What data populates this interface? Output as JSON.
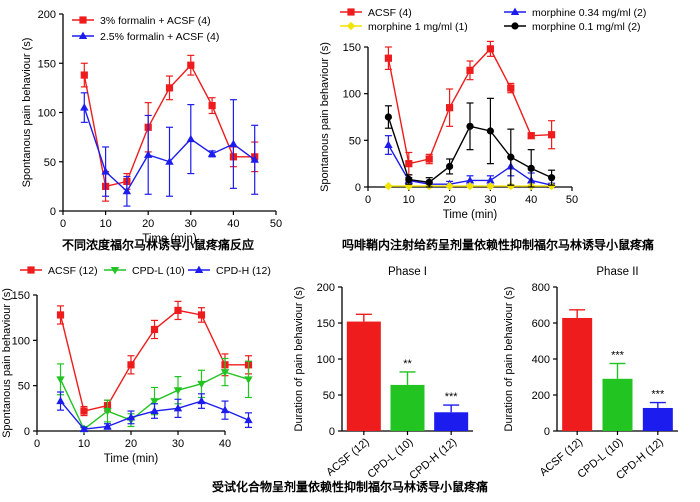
{
  "captions": {
    "panel_a": "不同浓度福尔马林诱导小鼠疼痛反应",
    "panel_b": "吗啡鞘内注射给药呈剂量依赖性抑制福尔马林诱导小鼠疼痛",
    "bottom": "受试化合物呈剂量依赖性抑制福尔马林诱导小鼠疼痛"
  },
  "colors": {
    "red": "#ee1c1c",
    "blue": "#1c1cee",
    "green": "#22c422",
    "black": "#000000",
    "yellow": "#f2e400"
  },
  "chart_data": [
    {
      "id": "a",
      "type": "line",
      "xlabel": "Time (min)",
      "ylabel": "Spontanous pain behaviour (s)",
      "xlim": [
        0,
        50
      ],
      "ylim": [
        0,
        200
      ],
      "xticks": [
        0,
        10,
        20,
        30,
        40,
        50
      ],
      "yticks": [
        0,
        50,
        100,
        150,
        200
      ],
      "legend_position": "top-left",
      "x": [
        5,
        10,
        15,
        20,
        25,
        30,
        35,
        40,
        45
      ],
      "series": [
        {
          "name": "3% formalin + ACSF (4)",
          "color": "#ee1c1c",
          "marker": "square",
          "values": [
            138,
            25,
            30,
            85,
            125,
            148,
            107,
            55,
            55
          ],
          "errors": [
            12,
            15,
            8,
            25,
            12,
            10,
            8,
            10,
            15
          ]
        },
        {
          "name": "2.5% formalin + ACSF (4)",
          "color": "#1c1cee",
          "marker": "triangle",
          "values": [
            105,
            40,
            20,
            57,
            50,
            73,
            58,
            68,
            52
          ],
          "errors": [
            15,
            25,
            15,
            40,
            35,
            35,
            3,
            45,
            35
          ]
        }
      ]
    },
    {
      "id": "b",
      "type": "line",
      "xlabel": "Time (min)",
      "ylabel": "Spontanous pain behaviour (s)",
      "xlim": [
        0,
        50
      ],
      "ylim": [
        0,
        150
      ],
      "xticks": [
        0,
        10,
        20,
        30,
        40,
        50
      ],
      "yticks": [
        0,
        50,
        100,
        150
      ],
      "legend_position": "top",
      "x": [
        5,
        10,
        15,
        20,
        25,
        30,
        35,
        40,
        45
      ],
      "series": [
        {
          "name": "ACSF (4)",
          "color": "#ee1c1c",
          "marker": "square",
          "values": [
            138,
            25,
            30,
            85,
            125,
            148,
            106,
            55,
            56
          ],
          "errors": [
            12,
            12,
            5,
            20,
            10,
            8,
            5,
            3,
            15
          ]
        },
        {
          "name": "morphine 0.34 mg/ml (2)",
          "color": "#1c1cee",
          "marker": "triangle",
          "values": [
            45,
            7,
            3,
            3,
            7,
            7,
            22,
            7,
            2
          ],
          "errors": [
            10,
            3,
            2,
            3,
            5,
            5,
            10,
            8,
            2
          ]
        },
        {
          "name": "morphine 1 mg/ml (1)",
          "color": "#f2e400",
          "marker": "diamond",
          "values": [
            1,
            1,
            1,
            1,
            1,
            1,
            1,
            1,
            1
          ],
          "errors": [
            0,
            0,
            0,
            0,
            0,
            0,
            0,
            0,
            0
          ]
        },
        {
          "name": "morphine 0.1 mg/ml (2)",
          "color": "#000000",
          "marker": "circle",
          "values": [
            75,
            8,
            5,
            22,
            65,
            60,
            32,
            20,
            10
          ],
          "errors": [
            12,
            5,
            5,
            8,
            25,
            35,
            30,
            20,
            8
          ]
        }
      ]
    },
    {
      "id": "c",
      "type": "line",
      "xlabel": "Time (min)",
      "ylabel": "Spontanous pain behaviour (s)",
      "xlim": [
        0,
        50
      ],
      "ylim": [
        0,
        150
      ],
      "xticks": [
        0,
        10,
        20,
        30,
        40
      ],
      "yticks": [
        0,
        50,
        100,
        150
      ],
      "legend_position": "top",
      "x": [
        5,
        10,
        15,
        20,
        25,
        30,
        35,
        40,
        45
      ],
      "series": [
        {
          "name": "ACSF (12)",
          "color": "#ee1c1c",
          "marker": "square",
          "values": [
            128,
            22,
            28,
            73,
            112,
            133,
            128,
            73,
            73
          ],
          "errors": [
            10,
            5,
            6,
            10,
            10,
            10,
            8,
            12,
            10
          ]
        },
        {
          "name": "CPD-L (10)",
          "color": "#22c422",
          "marker": "triangle-down",
          "values": [
            57,
            2,
            22,
            12,
            33,
            45,
            52,
            65,
            57
          ],
          "errors": [
            17,
            3,
            12,
            7,
            15,
            15,
            15,
            15,
            20
          ]
        },
        {
          "name": "CPD-H (12)",
          "color": "#1c1cee",
          "marker": "triangle",
          "values": [
            33,
            2,
            5,
            15,
            22,
            25,
            33,
            23,
            12
          ],
          "errors": [
            10,
            2,
            3,
            7,
            8,
            10,
            8,
            10,
            8
          ]
        }
      ]
    },
    {
      "id": "d",
      "type": "bar",
      "title": "Phase I",
      "ylabel": "Duration of pain behaviour (s)",
      "ylim": [
        0,
        200
      ],
      "yticks": [
        0,
        50,
        100,
        150,
        200
      ],
      "categories": [
        "ACSF (12)",
        "CPD-L (10)",
        "CPD-H (12)"
      ],
      "values": [
        152,
        64,
        26
      ],
      "errors": [
        10,
        18,
        10
      ],
      "colors": [
        "#ee1c1c",
        "#22c422",
        "#1c1cee"
      ],
      "annotations": [
        "",
        "**",
        "***"
      ]
    },
    {
      "id": "e",
      "type": "bar",
      "title": "Phase II",
      "ylabel": "Duration of pain behaviour (s)",
      "ylim": [
        0,
        800
      ],
      "yticks": [
        0,
        200,
        400,
        600,
        800
      ],
      "categories": [
        "ACSF (12)",
        "CPD-L (10)",
        "CPD-H (12)"
      ],
      "values": [
        628,
        290,
        128
      ],
      "errors": [
        45,
        85,
        30
      ],
      "colors": [
        "#ee1c1c",
        "#22c422",
        "#1c1cee"
      ],
      "annotations": [
        "",
        "***",
        "***"
      ]
    }
  ]
}
